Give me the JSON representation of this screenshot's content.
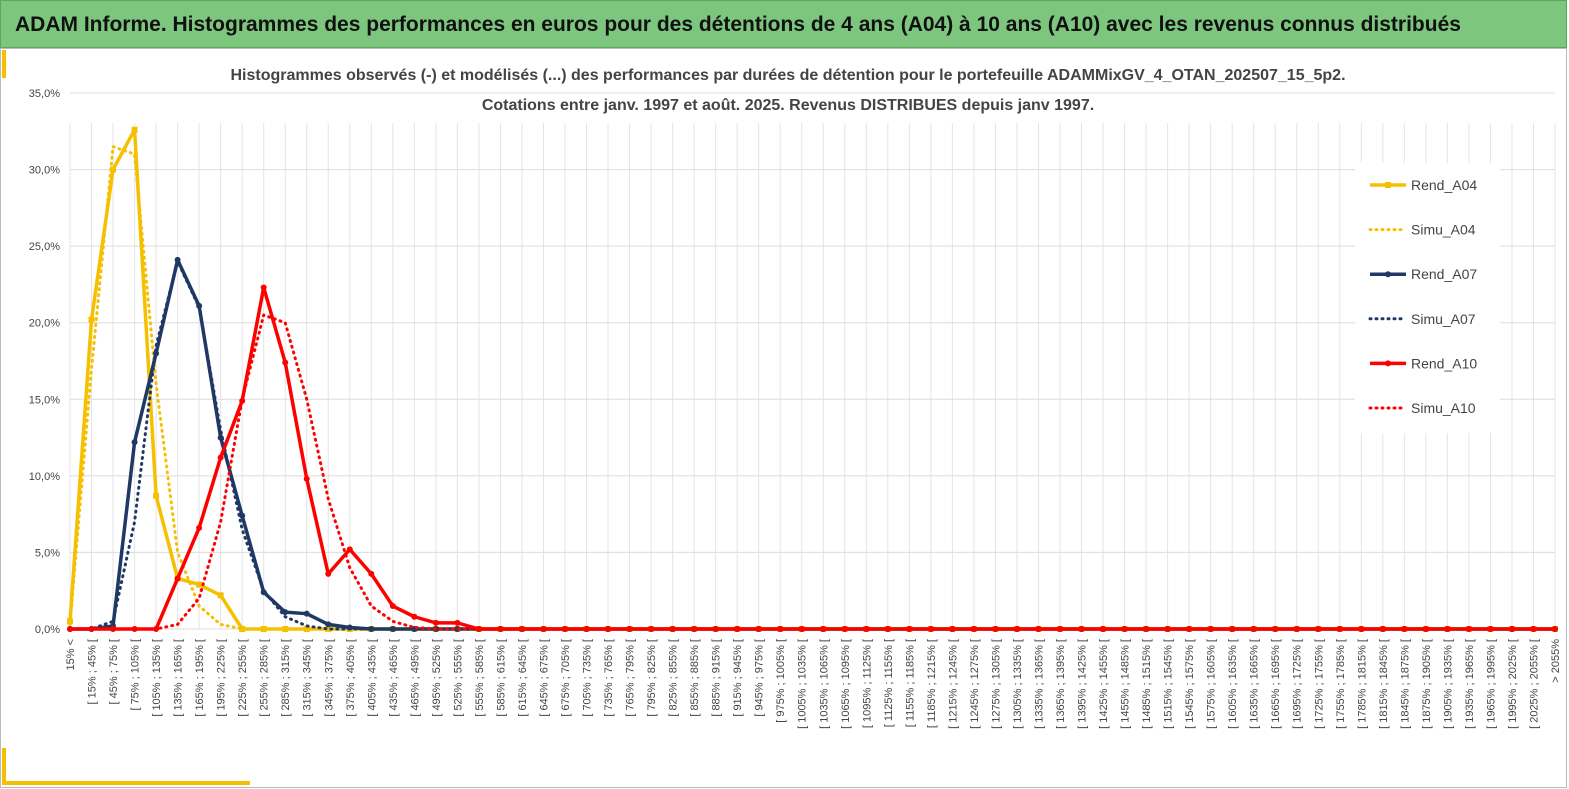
{
  "header": {
    "title": "ADAM Informe. Histogrammes des performances en euros pour des détentions de 4 ans (A04) à 10 ans (A10) avec les revenus connus distribués"
  },
  "chart_data": {
    "type": "line",
    "title": "Histogrammes observés (-) et modélisés (...) des performances par durées de détention pour le portefeuille ADAMMixGV_4_OTAN_202507_15_5p2.",
    "subtitle": "Cotations entre janv. 1997 et août. 2025. Revenus DISTRIBUES depuis janv 1997.",
    "categories": [
      "15% <",
      "[ 15% ; 45% [",
      "[ 45% ; 75% [",
      "[ 75% ; 105% [",
      "[ 105% ; 135% [",
      "[ 135% ; 165% [",
      "[ 165% ; 195% [",
      "[ 195% ; 225% [",
      "[ 225% ; 255% [",
      "[ 255% ; 285% [",
      "[ 285% ; 315% [",
      "[ 315% ; 345% [",
      "[ 345% ; 375% [",
      "[ 375% ; 405% [",
      "[ 405% ; 435% [",
      "[ 435% ; 465% [",
      "[ 465% ; 495% [",
      "[ 495% ; 525% [",
      "[ 525% ; 555% [",
      "[ 555% ; 585% [",
      "[ 585% ; 615% [",
      "[ 615% ; 645% [",
      "[ 645% ; 675% [",
      "[ 675% ; 705% [",
      "[ 705% ; 735% [",
      "[ 735% ; 765% [",
      "[ 765% ; 795% [",
      "[ 795% ; 825% [",
      "[ 825% ; 855% [",
      "[ 855% ; 885% [",
      "[ 885% ; 915% [",
      "[ 915% ; 945% [",
      "[ 945% ; 975% [",
      "[ 975% ; 1005% [",
      "[ 1005% ; 1035% [",
      "[ 1035% ; 1065% [",
      "[ 1065% ; 1095% [",
      "[ 1095% ; 1125% [",
      "[ 1125% ; 1155% [",
      "[ 1155% ; 1185% [",
      "[ 1185% ; 1215% [",
      "[ 1215% ; 1245% [",
      "[ 1245% ; 1275% [",
      "[ 1275% ; 1305% [",
      "[ 1305% ; 1335% [",
      "[ 1335% ; 1365% [",
      "[ 1365% ; 1395% [",
      "[ 1395% ; 1425% [",
      "[ 1425% ; 1455% [",
      "[ 1455% ; 1485% [",
      "[ 1485% ; 1515% [",
      "[ 1515% ; 1545% [",
      "[ 1545% ; 1575% [",
      "[ 1575% ; 1605% [",
      "[ 1605% ; 1635% [",
      "[ 1635% ; 1665% [",
      "[ 1665% ; 1695% [",
      "[ 1695% ; 1725% [",
      "[ 1725% ; 1755% [",
      "[ 1755% ; 1785% [",
      "[ 1785% ; 1815% [",
      "[ 1815% ; 1845% [",
      "[ 1845% ; 1875% [",
      "[ 1875% ; 1905% [",
      "[ 1905% ; 1935% [",
      "[ 1935% ; 1965% [",
      "[ 1965% ; 1995% [",
      "[ 1995% ; 2025% [",
      "[ 2025% ; 2055% [",
      "> 2055%"
    ],
    "series": [
      {
        "name": "Rend_A04",
        "color": "#f5c000",
        "dash": false,
        "marker": "square",
        "values": [
          0.5,
          20.2,
          30.0,
          32.6,
          8.7,
          3.3,
          2.9,
          2.2,
          0,
          0,
          0,
          0,
          0,
          0,
          0,
          0,
          0,
          0,
          0,
          0,
          0,
          0,
          0,
          0,
          0,
          0,
          0,
          0,
          0,
          0,
          0,
          0,
          0,
          0,
          0,
          0,
          0,
          0,
          0,
          0,
          0,
          0,
          0,
          0,
          0,
          0,
          0,
          0,
          0,
          0,
          0,
          0,
          0,
          0,
          0,
          0,
          0,
          0,
          0,
          0,
          0,
          0,
          0,
          0,
          0,
          0,
          0,
          0,
          0,
          0
        ]
      },
      {
        "name": "Simu_A04",
        "color": "#f5c000",
        "dash": true,
        "marker": null,
        "values": [
          0.3,
          17,
          31.5,
          31,
          16,
          5,
          1.5,
          0.3,
          0,
          0,
          0,
          0,
          0,
          0,
          0,
          0,
          0,
          0,
          0,
          0,
          0,
          0,
          0,
          0,
          0,
          0,
          0,
          0,
          0,
          0,
          0,
          0,
          0,
          0,
          0,
          0,
          0,
          0,
          0,
          0,
          0,
          0,
          0,
          0,
          0,
          0,
          0,
          0,
          0,
          0,
          0,
          0,
          0,
          0,
          0,
          0,
          0,
          0,
          0,
          0,
          0,
          0,
          0,
          0,
          0,
          0,
          0,
          0,
          0,
          0
        ]
      },
      {
        "name": "Rend_A07",
        "color": "#1f3864",
        "dash": false,
        "marker": "circle",
        "values": [
          0,
          0,
          0.2,
          12.2,
          18,
          24.1,
          21.1,
          12.5,
          7.4,
          2.4,
          1.1,
          1.0,
          0.3,
          0.1,
          0,
          0,
          0,
          0,
          0,
          0,
          0,
          0,
          0,
          0,
          0,
          0,
          0,
          0,
          0,
          0,
          0,
          0,
          0,
          0,
          0,
          0,
          0,
          0,
          0,
          0,
          0,
          0,
          0,
          0,
          0,
          0,
          0,
          0,
          0,
          0,
          0,
          0,
          0,
          0,
          0,
          0,
          0,
          0,
          0,
          0,
          0,
          0,
          0,
          0,
          0,
          0,
          0,
          0,
          0,
          0
        ]
      },
      {
        "name": "Simu_A07",
        "color": "#1f3864",
        "dash": true,
        "marker": null,
        "values": [
          0,
          0,
          0.5,
          7,
          18.5,
          24,
          21,
          13,
          6.5,
          2.5,
          0.8,
          0.2,
          0,
          0,
          0,
          0,
          0,
          0,
          0,
          0,
          0,
          0,
          0,
          0,
          0,
          0,
          0,
          0,
          0,
          0,
          0,
          0,
          0,
          0,
          0,
          0,
          0,
          0,
          0,
          0,
          0,
          0,
          0,
          0,
          0,
          0,
          0,
          0,
          0,
          0,
          0,
          0,
          0,
          0,
          0,
          0,
          0,
          0,
          0,
          0,
          0,
          0,
          0,
          0,
          0,
          0,
          0,
          0,
          0,
          0
        ]
      },
      {
        "name": "Rend_A10",
        "color": "#ff0000",
        "dash": false,
        "marker": "circle",
        "values": [
          0,
          0,
          0,
          0,
          0,
          3.3,
          6.6,
          11.2,
          14.9,
          22.3,
          17.4,
          9.8,
          3.6,
          5.2,
          3.6,
          1.5,
          0.8,
          0.4,
          0.4,
          0,
          0,
          0,
          0,
          0,
          0,
          0,
          0,
          0,
          0,
          0,
          0,
          0,
          0,
          0,
          0,
          0,
          0,
          0,
          0,
          0,
          0,
          0,
          0,
          0,
          0,
          0,
          0,
          0,
          0,
          0,
          0,
          0,
          0,
          0,
          0,
          0,
          0,
          0,
          0,
          0,
          0,
          0,
          0,
          0,
          0,
          0,
          0,
          0,
          0,
          0
        ]
      },
      {
        "name": "Simu_A10",
        "color": "#ff0000",
        "dash": true,
        "marker": null,
        "values": [
          0,
          0,
          0,
          0,
          0,
          0.3,
          2,
          7,
          15,
          20.5,
          20,
          15,
          8.5,
          4,
          1.5,
          0.5,
          0.1,
          0,
          0,
          0,
          0,
          0,
          0,
          0,
          0,
          0,
          0,
          0,
          0,
          0,
          0,
          0,
          0,
          0,
          0,
          0,
          0,
          0,
          0,
          0,
          0,
          0,
          0,
          0,
          0,
          0,
          0,
          0,
          0,
          0,
          0,
          0,
          0,
          0,
          0,
          0,
          0,
          0,
          0,
          0,
          0,
          0,
          0,
          0,
          0,
          0,
          0,
          0,
          0,
          0
        ]
      }
    ],
    "ylim": [
      0,
      35
    ],
    "yticks": [
      {
        "value": 0,
        "label": "0,0%"
      },
      {
        "value": 5,
        "label": "5,0%"
      },
      {
        "value": 10,
        "label": "10,0%"
      },
      {
        "value": 15,
        "label": "15,0%"
      },
      {
        "value": 20,
        "label": "20,0%"
      },
      {
        "value": 25,
        "label": "25,0%"
      },
      {
        "value": 30,
        "label": "30,0%"
      },
      {
        "value": 35,
        "label": "35,0%"
      }
    ],
    "grid": true,
    "legend": "right"
  }
}
